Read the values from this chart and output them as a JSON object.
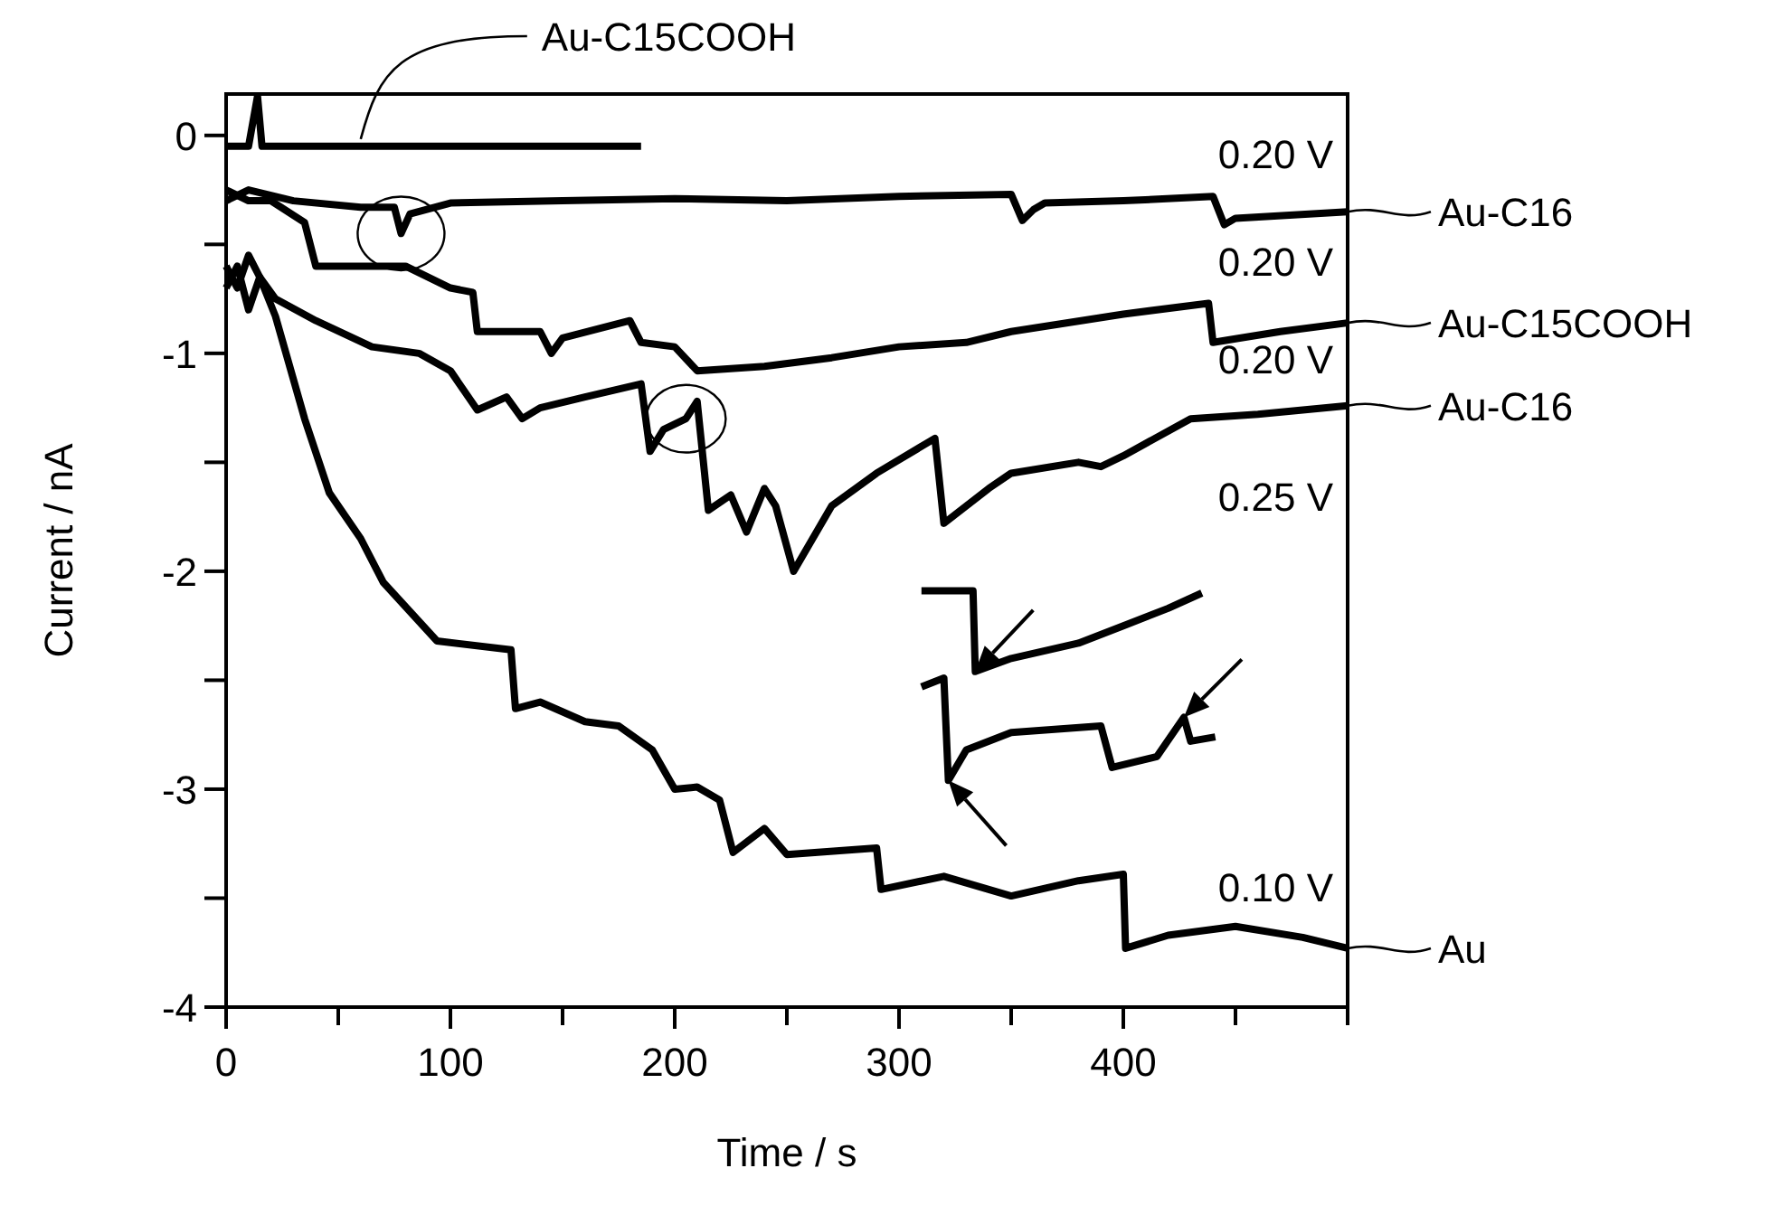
{
  "chart_data": {
    "type": "line",
    "xlabel": "Time / s",
    "ylabel": "Current / nA",
    "xlim": [
      0,
      500
    ],
    "ylim": [
      -4,
      0.19
    ],
    "xticks": [
      0,
      {
        "value": 50,
        "label": null
      },
      100,
      {
        "value": 150,
        "label": null
      },
      200,
      {
        "value": 250,
        "label": null
      },
      300,
      {
        "value": 350,
        "label": null
      },
      400,
      {
        "value": 450,
        "label": null
      },
      {
        "value": 500,
        "label": null
      }
    ],
    "yticks": [
      -4,
      {
        "value": -3.5,
        "label": null
      },
      -3,
      {
        "value": -2.5,
        "label": null
      },
      -2,
      {
        "value": -1.5,
        "label": null
      },
      -1,
      {
        "value": -0.5,
        "label": null
      },
      0
    ],
    "grid": false,
    "legend": "right",
    "line_style": "solid",
    "series": [
      {
        "name": "Au-C15COOH",
        "color": "#000000",
        "x": [
          0,
          10,
          14,
          16,
          60,
          120,
          185
        ],
        "values": [
          -0.05,
          -0.05,
          0.18,
          -0.05,
          -0.05,
          -0.05,
          -0.05
        ]
      },
      {
        "name": "Au-C16",
        "color": "#000000",
        "x": [
          0,
          10,
          30,
          60,
          75,
          78,
          82,
          100,
          150,
          200,
          250,
          300,
          350,
          355,
          360,
          365,
          400,
          440,
          445,
          450,
          500
        ],
        "values": [
          -0.3,
          -0.25,
          -0.3,
          -0.33,
          -0.33,
          -0.45,
          -0.36,
          -0.31,
          -0.3,
          -0.29,
          -0.3,
          -0.28,
          -0.27,
          -0.39,
          -0.34,
          -0.31,
          -0.3,
          -0.28,
          -0.41,
          -0.38,
          -0.35
        ]
      },
      {
        "name": "Au-C15COOH",
        "color": "#000000",
        "x": [
          0,
          10,
          20,
          35,
          40,
          60,
          80,
          100,
          110,
          112,
          140,
          145,
          150,
          180,
          185,
          200,
          210,
          240,
          270,
          300,
          330,
          350,
          400,
          438,
          440,
          470,
          500
        ],
        "values": [
          -0.25,
          -0.3,
          -0.3,
          -0.4,
          -0.6,
          -0.6,
          -0.6,
          -0.7,
          -0.72,
          -0.9,
          -0.9,
          -1.0,
          -0.93,
          -0.85,
          -0.95,
          -0.97,
          -1.08,
          -1.06,
          -1.02,
          -0.97,
          -0.95,
          -0.9,
          -0.82,
          -0.77,
          -0.95,
          -0.9,
          -0.86
        ]
      },
      {
        "name": "Au-C16",
        "color": "#000000",
        "x": [
          0,
          5,
          10,
          15,
          22,
          40,
          65,
          86,
          100,
          112,
          125,
          132,
          140,
          160,
          185,
          189,
          195,
          205,
          210,
          215,
          225,
          232,
          240,
          245,
          253,
          270,
          290,
          316,
          320,
          340,
          350,
          380,
          390,
          400,
          430,
          460,
          500
        ],
        "values": [
          -0.6,
          -0.7,
          -0.55,
          -0.65,
          -0.75,
          -0.85,
          -0.97,
          -1.0,
          -1.08,
          -1.26,
          -1.2,
          -1.3,
          -1.25,
          -1.2,
          -1.14,
          -1.45,
          -1.35,
          -1.3,
          -1.22,
          -1.72,
          -1.65,
          -1.82,
          -1.62,
          -1.7,
          -2.0,
          -1.7,
          -1.55,
          -1.39,
          -1.78,
          -1.62,
          -1.55,
          -1.5,
          -1.52,
          -1.47,
          -1.3,
          -1.28,
          -1.24
        ]
      },
      {
        "name": "Au",
        "color": "#000000",
        "x": [
          0,
          5,
          10,
          15,
          22,
          35,
          46,
          60,
          70,
          94,
          127,
          129,
          140,
          160,
          175,
          190,
          200,
          210,
          220,
          226,
          240,
          250,
          290,
          292,
          320,
          350,
          380,
          400,
          401,
          420,
          450,
          480,
          500
        ],
        "values": [
          -0.7,
          -0.6,
          -0.8,
          -0.65,
          -0.83,
          -1.3,
          -1.64,
          -1.85,
          -2.05,
          -2.32,
          -2.36,
          -2.63,
          -2.6,
          -2.69,
          -2.71,
          -2.82,
          -3.0,
          -2.99,
          -3.05,
          -3.29,
          -3.18,
          -3.3,
          -3.27,
          -3.46,
          -3.4,
          -3.49,
          -3.42,
          -3.39,
          -3.73,
          -3.67,
          -3.63,
          -3.68,
          -3.73
        ]
      },
      {
        "color": "#000000",
        "x": [
          310,
          333,
          334,
          350,
          380,
          400,
          420,
          435
        ],
        "values": [
          -2.09,
          -2.09,
          -2.46,
          -2.4,
          -2.33,
          -2.25,
          -2.17,
          -2.1
        ]
      },
      {
        "color": "#000000",
        "x": [
          310,
          320,
          322,
          330,
          350,
          390,
          395,
          415,
          427,
          430,
          441
        ],
        "values": [
          -2.53,
          -2.49,
          -2.96,
          -2.82,
          -2.74,
          -2.71,
          -2.9,
          -2.85,
          -2.67,
          -2.78,
          -2.76
        ]
      }
    ],
    "annotations": [
      "0.20 V",
      "0.20 V",
      "0.20 V",
      "0.25 V",
      "0.10 V"
    ]
  }
}
